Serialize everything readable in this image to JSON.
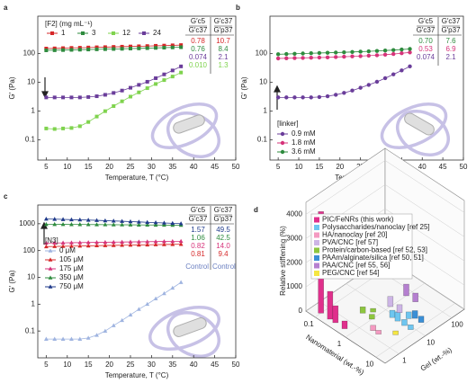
{
  "chart_data": [
    {
      "type": "line",
      "panel": "a",
      "xlabel": "Temperature, T (°C)",
      "ylabel": "G′ (Pa)",
      "log_y": true,
      "xlim": [
        3,
        50
      ],
      "xticks": [
        5,
        10,
        15,
        20,
        25,
        30,
        35,
        40,
        45,
        50
      ],
      "ylim": [
        0.02,
        2000
      ],
      "yticks": [
        0.1,
        1,
        10,
        100
      ],
      "marker": "square",
      "legend": "top-left",
      "legend_layout": "horizontal",
      "legend_title": "[F2]  (mg mL⁻¹)",
      "x": [
        5,
        7,
        9,
        11,
        13,
        15,
        17,
        19,
        21,
        23,
        25,
        27,
        29,
        31,
        33,
        35,
        37
      ],
      "series": [
        {
          "name": "1",
          "color": "#d62728",
          "values": [
            150,
            152,
            155,
            158,
            160,
            163,
            166,
            168,
            171,
            174,
            177,
            180,
            183,
            187,
            190,
            194,
            198
          ]
        },
        {
          "name": "3",
          "color": "#2e8b3e",
          "values": [
            130,
            131,
            133,
            135,
            137,
            139,
            141,
            143,
            145,
            147,
            150,
            152,
            155,
            158,
            161,
            164,
            167
          ]
        },
        {
          "name": "12",
          "color": "#7fd34e",
          "values": [
            0.25,
            0.24,
            0.25,
            0.26,
            0.3,
            0.42,
            0.65,
            1.0,
            1.5,
            2.2,
            3.2,
            4.5,
            6.3,
            8.8,
            12,
            16,
            22
          ]
        },
        {
          "name": "24",
          "color": "#6a3d9a",
          "values": [
            3,
            3,
            3,
            3,
            3,
            3.1,
            3.3,
            3.7,
            4.3,
            5.2,
            6.5,
            8.2,
            10.5,
            14,
            19,
            26,
            36
          ]
        }
      ],
      "table": {
        "columns": [
          [
            "G′c5",
            "G′c37"
          ],
          [
            "G′c37",
            "G′p37"
          ]
        ],
        "rows": [
          {
            "color": "#d62728",
            "cells": [
              "0.78",
              "10.7"
            ]
          },
          {
            "color": "#2e8b3e",
            "cells": [
              "0.76",
              "8.4"
            ]
          },
          {
            "color": "#6a3d9a",
            "cells": [
              "0.074",
              "2.1"
            ]
          },
          {
            "color": "#7fd34e",
            "cells": [
              "0.010",
              "1.3"
            ]
          }
        ]
      }
    },
    {
      "type": "line",
      "panel": "b",
      "xlabel": "Temperature, T (°C)",
      "ylabel": "G′ (Pa)",
      "log_y": true,
      "xlim": [
        3,
        50
      ],
      "xticks": [
        5,
        10,
        15,
        20,
        25,
        30,
        35,
        40,
        45,
        50
      ],
      "ylim": [
        0.02,
        2000
      ],
      "yticks": [
        0.1,
        1,
        10,
        100
      ],
      "marker": "circle",
      "legend": "bottom-left",
      "legend_layout": "vertical",
      "legend_title": "[linker]",
      "x": [
        5,
        7,
        9,
        11,
        13,
        15,
        17,
        19,
        21,
        23,
        25,
        27,
        29,
        31,
        33,
        35,
        37
      ],
      "series": [
        {
          "name": "0.9 mM",
          "color": "#6a3d9a",
          "values": [
            3,
            3,
            3,
            3,
            3,
            3.1,
            3.3,
            3.7,
            4.3,
            5.2,
            6.5,
            8.2,
            10.5,
            14,
            19,
            26,
            36
          ]
        },
        {
          "name": "1.8 mM",
          "color": "#d6337a",
          "values": [
            68,
            69,
            70,
            71,
            72,
            73,
            74,
            76,
            78,
            80,
            82,
            85,
            88,
            92,
            97,
            103,
            110
          ]
        },
        {
          "name": "3.6 mM",
          "color": "#2e8b3e",
          "values": [
            95,
            97,
            99,
            101,
            103,
            105,
            107,
            109,
            111,
            114,
            117,
            120,
            124,
            128,
            133,
            139,
            145
          ]
        }
      ],
      "table": {
        "columns": [
          [
            "G′c5",
            "G′c37"
          ],
          [
            "G′c37",
            "G′p37"
          ]
        ],
        "rows": [
          {
            "color": "#2e8b3e",
            "cells": [
              "0.70",
              "7.6"
            ]
          },
          {
            "color": "#d6337a",
            "cells": [
              "0.53",
              "6.9"
            ]
          },
          {
            "color": "#6a3d9a",
            "cells": [
              "0.074",
              "2.1"
            ]
          }
        ]
      }
    },
    {
      "type": "line",
      "panel": "c",
      "xlabel": "Temperature, T (°C)",
      "ylabel": "G′ (Pa)",
      "log_y": true,
      "xlim": [
        3,
        50
      ],
      "xticks": [
        5,
        10,
        15,
        20,
        25,
        30,
        35,
        40,
        45,
        50
      ],
      "ylim": [
        0.01,
        5000
      ],
      "yticks": [
        0.1,
        1,
        10,
        100,
        1000
      ],
      "marker": "triangle",
      "legend": "middle-left",
      "legend_layout": "vertical",
      "legend_title": "[N3]",
      "x": [
        5,
        7,
        9,
        11,
        13,
        15,
        17,
        19,
        21,
        23,
        25,
        27,
        29,
        31,
        33,
        35,
        37
      ],
      "series": [
        {
          "name": "0 μM",
          "color": "#9fb4e0",
          "values": [
            0.05,
            0.05,
            0.05,
            0.05,
            0.05,
            0.055,
            0.07,
            0.1,
            0.16,
            0.25,
            0.4,
            0.65,
            1.0,
            1.6,
            2.5,
            4,
            6.5
          ]
        },
        {
          "name": "105 μM",
          "color": "#d62728",
          "values": [
            140,
            142,
            144,
            146,
            148,
            150,
            152,
            154,
            156,
            158,
            160,
            162,
            164,
            166,
            168,
            170,
            172
          ]
        },
        {
          "name": "175 μM",
          "color": "#d6337a",
          "values": [
            190,
            192,
            194,
            196,
            198,
            200,
            202,
            204,
            206,
            208,
            210,
            212,
            214,
            216,
            218,
            220,
            222
          ]
        },
        {
          "name": "350 μM",
          "color": "#2e8b3e",
          "values": [
            950,
            950,
            945,
            940,
            940,
            935,
            930,
            925,
            920,
            915,
            910,
            905,
            900,
            895,
            890,
            885,
            880
          ]
        },
        {
          "name": "750 μM",
          "color": "#1f3a8a",
          "values": [
            1500,
            1480,
            1450,
            1420,
            1400,
            1370,
            1340,
            1300,
            1270,
            1240,
            1200,
            1170,
            1130,
            1100,
            1070,
            1040,
            1010
          ]
        }
      ],
      "table": {
        "columns": [
          [
            "G′c5",
            "G′c37"
          ],
          [
            "G′c37",
            "G′p37"
          ]
        ],
        "rows": [
          {
            "color": "#1f3a8a",
            "cells": [
              "1.57",
              "49.5"
            ]
          },
          {
            "color": "#2e8b3e",
            "cells": [
              "1.06",
              "42.5"
            ]
          },
          {
            "color": "#d6337a",
            "cells": [
              "0.82",
              "14.0"
            ]
          },
          {
            "color": "#d62728",
            "cells": [
              "0.81",
              "9.4"
            ]
          }
        ]
      },
      "annotations": [
        "Control",
        "Control"
      ]
    },
    {
      "type": "bar3d",
      "panel": "d",
      "zlabel": "Relative stiffening (%)",
      "xlabel": "Nanomaterial (wt.-%)",
      "ylabel": "Gel (wt.-%)",
      "log_x": true,
      "log_y": true,
      "xlim": [
        0.05,
        20
      ],
      "xticks": [
        0.1,
        1,
        10
      ],
      "ylim": [
        0.3,
        300
      ],
      "yticks": [
        1,
        10,
        100
      ],
      "zlim": [
        0,
        4500
      ],
      "zticks": [
        0,
        1000,
        2000,
        3000,
        4000
      ],
      "series": [
        {
          "name": "PIC/FeNRs (this work)",
          "color": "#e0308c",
          "x": [
            0.1,
            0.2,
            0.3,
            0.6
          ],
          "y": [
            0.5,
            0.5,
            0.5,
            0.5
          ],
          "values": [
            4200,
            1150,
            700,
            320
          ]
        },
        {
          "name": "Polysaccharides/nanoclay [ref 25]",
          "color": "#6ec6f0",
          "x": [
            2,
            3,
            5,
            8,
            4
          ],
          "y": [
            8,
            8,
            8,
            8,
            15
          ],
          "values": [
            300,
            380,
            250,
            200,
            280
          ]
        },
        {
          "name": "HA/nanoclay [ref 20]",
          "color": "#f49ac1",
          "x": [
            2,
            3
          ],
          "y": [
            1.5,
            1.5
          ],
          "values": [
            220,
            160
          ]
        },
        {
          "name": "PVA/CNC [ref 57]",
          "color": "#cdb5e6",
          "x": [
            1,
            2
          ],
          "y": [
            15,
            15
          ],
          "values": [
            420,
            330
          ]
        },
        {
          "name": "Protein/carbon-based [ref 52, 53]",
          "color": "#8dc63f",
          "x": [
            0.5,
            1,
            0.7
          ],
          "y": [
            3,
            3,
            5
          ],
          "values": [
            260,
            200,
            150
          ]
        },
        {
          "name": "PAAm/alginate/silica [ref 50, 51]",
          "color": "#3b8fd6",
          "x": [
            5,
            8
          ],
          "y": [
            20,
            20
          ],
          "values": [
            320,
            260
          ]
        },
        {
          "name": "PAA/CNC [ref 55, 56]",
          "color": "#b57fd0",
          "x": [
            1,
            2
          ],
          "y": [
            60,
            60
          ],
          "values": [
            480,
            360
          ]
        },
        {
          "name": "PEG/CNC [ref 54]",
          "color": "#f5e642",
          "x": [
            6
          ],
          "y": [
            3
          ],
          "values": [
            160
          ]
        }
      ]
    }
  ]
}
